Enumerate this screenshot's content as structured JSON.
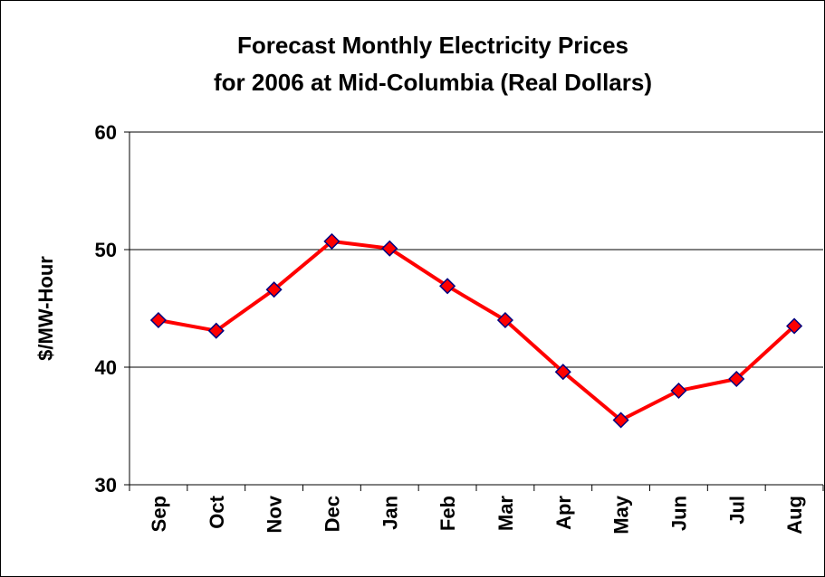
{
  "chart_data": {
    "type": "line",
    "title": [
      "Forecast Monthly Electricity Prices",
      "for 2006 at Mid-Columbia (Real Dollars)"
    ],
    "y_label": "$/MW-Hour",
    "categories": [
      "Sep",
      "Oct",
      "Nov",
      "Dec",
      "Jan",
      "Feb",
      "Mar",
      "Apr",
      "May",
      "Jun",
      "Jul",
      "Aug"
    ],
    "values": [
      44.0,
      43.1,
      46.6,
      50.7,
      50.1,
      46.9,
      44.0,
      39.6,
      35.5,
      38.0,
      39.0,
      43.5
    ],
    "color": "#ff0000",
    "marker_color": "#ff0000",
    "marker_edge": "#000080",
    "ylim": [
      30,
      60
    ],
    "yticks": [
      30,
      40,
      50,
      60
    ],
    "grid": true
  }
}
